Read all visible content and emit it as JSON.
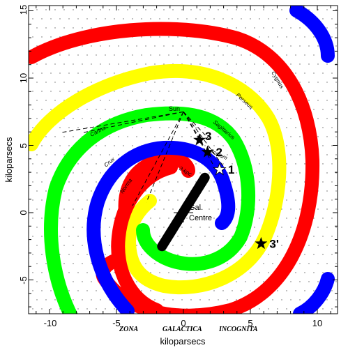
{
  "axes": {
    "xlabel": "kiloparsecs",
    "ylabel": "kiloparsecs",
    "xlim": [
      -11.5,
      11.5
    ],
    "ylim": [
      -7.5,
      15
    ],
    "x_ticks": [
      "-10",
      "-5",
      "0",
      "5",
      "10"
    ],
    "y_ticks": [
      "15",
      "10",
      "5",
      "0",
      "-5"
    ],
    "dotted_background": true
  },
  "arms": [
    {
      "name": "Cygnus",
      "label": "Cygnus",
      "color": "#ff0000"
    },
    {
      "name": "Perseus",
      "label": "Perseus",
      "color": "#ffff00"
    },
    {
      "name": "Sagittarius",
      "label": "Sagittarius",
      "color": "#00ff00"
    },
    {
      "name": "Scutum",
      "label": "Scutum",
      "color": "#0000ff"
    },
    {
      "name": "Norma",
      "label": "Norma",
      "color": "#ff0000"
    },
    {
      "name": "Crux",
      "label": "Crux",
      "color": "#0000ff"
    },
    {
      "name": "Carina",
      "label": "Carina",
      "color": "#00ff00"
    },
    {
      "name": "3-kpc",
      "label": "3-kpc",
      "color": "#ff0000"
    }
  ],
  "sun": {
    "label": "Sun",
    "x": 0,
    "y": 7.6
  },
  "galactic_centre": {
    "label_line1": "Gal.",
    "label_line2": "Centre",
    "x": 0,
    "y": 0
  },
  "bar": {
    "x1": -1.6,
    "y1": -2.5,
    "x2": 1.6,
    "y2": 2.6,
    "color": "#000000"
  },
  "sources": [
    {
      "label": "1",
      "x": 2.7,
      "y": 3.2,
      "color": "#ffffff"
    },
    {
      "label": "2",
      "x": 1.8,
      "y": 4.5,
      "color": "#000000"
    },
    {
      "label": "3",
      "x": 1.2,
      "y": 5.4,
      "color": "#000000"
    },
    {
      "label": "3'",
      "x": 5.8,
      "y": -2.3,
      "color": "#000000"
    }
  ],
  "zone_of_avoidance": [
    "ZONA",
    "GALACTICA",
    "INCOGNITA"
  ]
}
